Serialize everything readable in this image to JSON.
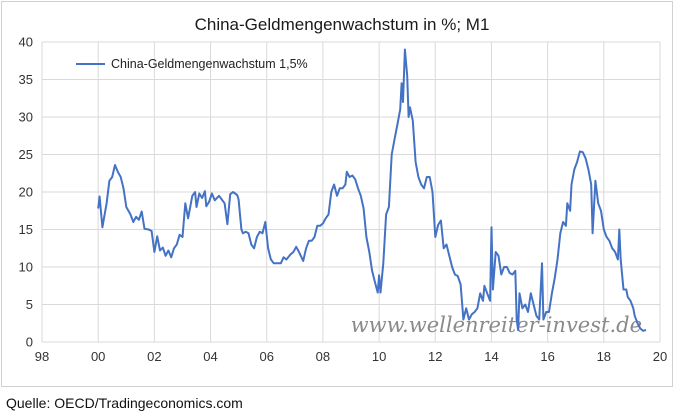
{
  "chart_data": {
    "type": "line",
    "title": "China-Geldmengenwachstum in %; M1",
    "xlabel": "",
    "ylabel": "",
    "xlim": [
      1998,
      2020
    ],
    "ylim": [
      0,
      40
    ],
    "grid": true,
    "legend_position": "top-left",
    "x_ticks": [
      {
        "value": 1998,
        "label": "98"
      },
      {
        "value": 2000,
        "label": "00"
      },
      {
        "value": 2002,
        "label": "02"
      },
      {
        "value": 2004,
        "label": "04"
      },
      {
        "value": 2006,
        "label": "06"
      },
      {
        "value": 2008,
        "label": "08"
      },
      {
        "value": 2010,
        "label": "10"
      },
      {
        "value": 2012,
        "label": "12"
      },
      {
        "value": 2014,
        "label": "14"
      },
      {
        "value": 2016,
        "label": "16"
      },
      {
        "value": 2018,
        "label": "18"
      },
      {
        "value": 2020,
        "label": "20"
      }
    ],
    "y_ticks": [
      0,
      5,
      10,
      15,
      20,
      25,
      30,
      35,
      40
    ],
    "series": [
      {
        "name": "China-Geldmengenwachstum 1,5%",
        "color": "#4472C4",
        "points": [
          [
            2000.0,
            17.8
          ],
          [
            2000.05,
            19.4
          ],
          [
            2000.15,
            15.3
          ],
          [
            2000.3,
            18.5
          ],
          [
            2000.4,
            21.5
          ],
          [
            2000.5,
            22.0
          ],
          [
            2000.6,
            23.6
          ],
          [
            2000.7,
            22.7
          ],
          [
            2000.8,
            22.0
          ],
          [
            2000.9,
            20.5
          ],
          [
            2001.0,
            18.0
          ],
          [
            2001.15,
            17.0
          ],
          [
            2001.25,
            16.0
          ],
          [
            2001.35,
            16.7
          ],
          [
            2001.45,
            16.3
          ],
          [
            2001.55,
            17.4
          ],
          [
            2001.65,
            15.1
          ],
          [
            2001.8,
            15.0
          ],
          [
            2001.9,
            14.8
          ],
          [
            2002.0,
            12.0
          ],
          [
            2002.1,
            14.1
          ],
          [
            2002.2,
            12.2
          ],
          [
            2002.3,
            12.6
          ],
          [
            2002.4,
            11.5
          ],
          [
            2002.5,
            12.2
          ],
          [
            2002.6,
            11.3
          ],
          [
            2002.7,
            12.5
          ],
          [
            2002.8,
            13.0
          ],
          [
            2002.9,
            14.3
          ],
          [
            2003.0,
            14.0
          ],
          [
            2003.1,
            18.5
          ],
          [
            2003.2,
            16.5
          ],
          [
            2003.35,
            19.5
          ],
          [
            2003.45,
            20.0
          ],
          [
            2003.5,
            18.0
          ],
          [
            2003.6,
            19.8
          ],
          [
            2003.7,
            19.2
          ],
          [
            2003.8,
            20.1
          ],
          [
            2003.85,
            18.1
          ],
          [
            2003.95,
            18.7
          ],
          [
            2004.05,
            19.8
          ],
          [
            2004.15,
            18.9
          ],
          [
            2004.3,
            19.5
          ],
          [
            2004.4,
            19.0
          ],
          [
            2004.5,
            18.5
          ],
          [
            2004.6,
            15.7
          ],
          [
            2004.7,
            19.7
          ],
          [
            2004.8,
            20.0
          ],
          [
            2004.95,
            19.6
          ],
          [
            2005.0,
            19.0
          ],
          [
            2005.1,
            15.0
          ],
          [
            2005.15,
            14.5
          ],
          [
            2005.25,
            14.7
          ],
          [
            2005.35,
            14.5
          ],
          [
            2005.45,
            13.0
          ],
          [
            2005.55,
            12.5
          ],
          [
            2005.65,
            14.0
          ],
          [
            2005.75,
            14.7
          ],
          [
            2005.85,
            14.5
          ],
          [
            2005.95,
            16.0
          ],
          [
            2006.05,
            12.5
          ],
          [
            2006.15,
            11.0
          ],
          [
            2006.25,
            10.5
          ],
          [
            2006.5,
            10.5
          ],
          [
            2006.6,
            11.3
          ],
          [
            2006.7,
            11.0
          ],
          [
            2006.85,
            11.7
          ],
          [
            2006.95,
            12.0
          ],
          [
            2007.05,
            12.7
          ],
          [
            2007.15,
            12.0
          ],
          [
            2007.3,
            10.8
          ],
          [
            2007.4,
            12.5
          ],
          [
            2007.5,
            13.5
          ],
          [
            2007.6,
            13.5
          ],
          [
            2007.7,
            14.0
          ],
          [
            2007.8,
            15.5
          ],
          [
            2007.9,
            15.5
          ],
          [
            2008.0,
            15.8
          ],
          [
            2008.1,
            16.5
          ],
          [
            2008.2,
            17.0
          ],
          [
            2008.3,
            20.0
          ],
          [
            2008.4,
            21.0
          ],
          [
            2008.5,
            19.5
          ],
          [
            2008.6,
            20.5
          ],
          [
            2008.7,
            20.5
          ],
          [
            2008.8,
            21.0
          ],
          [
            2008.85,
            22.7
          ],
          [
            2008.95,
            22.0
          ],
          [
            2009.05,
            22.2
          ],
          [
            2009.15,
            21.7
          ],
          [
            2009.25,
            20.5
          ],
          [
            2009.35,
            19.5
          ],
          [
            2009.45,
            17.8
          ],
          [
            2009.55,
            14.0
          ],
          [
            2009.65,
            12.0
          ],
          [
            2009.75,
            9.5
          ],
          [
            2009.85,
            8.0
          ],
          [
            2009.95,
            6.6
          ],
          [
            2010.0,
            8.9
          ],
          [
            2010.05,
            6.6
          ],
          [
            2010.15,
            10.5
          ],
          [
            2010.25,
            17.0
          ],
          [
            2010.35,
            18.0
          ],
          [
            2010.45,
            25.0
          ],
          [
            2010.55,
            27.0
          ],
          [
            2010.65,
            29.0
          ],
          [
            2010.75,
            31.0
          ],
          [
            2010.8,
            34.5
          ],
          [
            2010.85,
            32.0
          ],
          [
            2010.92,
            39.0
          ],
          [
            2011.0,
            35.5
          ],
          [
            2011.05,
            30.0
          ],
          [
            2011.1,
            31.3
          ],
          [
            2011.2,
            29.5
          ],
          [
            2011.3,
            24.0
          ],
          [
            2011.4,
            22.0
          ],
          [
            2011.5,
            21.0
          ],
          [
            2011.6,
            20.5
          ],
          [
            2011.7,
            22.0
          ],
          [
            2011.8,
            22.0
          ],
          [
            2011.9,
            20.0
          ],
          [
            2012.0,
            14.0
          ],
          [
            2012.1,
            15.6
          ],
          [
            2012.2,
            16.2
          ],
          [
            2012.3,
            12.5
          ],
          [
            2012.4,
            13.0
          ],
          [
            2012.5,
            11.5
          ],
          [
            2012.6,
            10.0
          ],
          [
            2012.7,
            9.0
          ],
          [
            2012.8,
            8.8
          ],
          [
            2012.9,
            7.7
          ],
          [
            2013.0,
            3.0
          ],
          [
            2013.1,
            4.5
          ],
          [
            2013.2,
            3.0
          ],
          [
            2013.3,
            3.7
          ],
          [
            2013.4,
            4.0
          ],
          [
            2013.5,
            4.5
          ],
          [
            2013.6,
            6.5
          ],
          [
            2013.7,
            5.5
          ],
          [
            2013.75,
            7.5
          ],
          [
            2013.85,
            6.5
          ],
          [
            2013.95,
            5.5
          ],
          [
            2014.0,
            15.3
          ],
          [
            2014.05,
            7.0
          ],
          [
            2014.15,
            12.0
          ],
          [
            2014.25,
            11.5
          ],
          [
            2014.35,
            9.0
          ],
          [
            2014.45,
            10.0
          ],
          [
            2014.55,
            10.0
          ],
          [
            2014.65,
            9.2
          ],
          [
            2014.75,
            9.0
          ],
          [
            2014.85,
            9.5
          ],
          [
            2014.9,
            3.0
          ],
          [
            2014.95,
            1.6
          ],
          [
            2015.0,
            6.5
          ],
          [
            2015.1,
            4.5
          ],
          [
            2015.2,
            5.0
          ],
          [
            2015.3,
            4.0
          ],
          [
            2015.4,
            6.5
          ],
          [
            2015.5,
            5.0
          ],
          [
            2015.6,
            3.5
          ],
          [
            2015.7,
            3.0
          ],
          [
            2015.8,
            10.5
          ],
          [
            2015.85,
            3.0
          ],
          [
            2015.95,
            4.0
          ],
          [
            2016.05,
            4.0
          ],
          [
            2016.15,
            6.5
          ],
          [
            2016.25,
            8.5
          ],
          [
            2016.35,
            11.0
          ],
          [
            2016.45,
            14.5
          ],
          [
            2016.55,
            16.0
          ],
          [
            2016.65,
            15.5
          ],
          [
            2016.7,
            18.5
          ],
          [
            2016.8,
            17.5
          ],
          [
            2016.85,
            21.0
          ],
          [
            2016.95,
            23.0
          ],
          [
            2017.05,
            24.0
          ],
          [
            2017.15,
            25.4
          ],
          [
            2017.25,
            25.3
          ],
          [
            2017.35,
            24.5
          ],
          [
            2017.45,
            23.0
          ],
          [
            2017.55,
            21.0
          ],
          [
            2017.6,
            14.5
          ],
          [
            2017.7,
            21.5
          ],
          [
            2017.8,
            18.5
          ],
          [
            2017.9,
            17.5
          ],
          [
            2018.0,
            15.0
          ],
          [
            2018.1,
            14.0
          ],
          [
            2018.2,
            13.5
          ],
          [
            2018.3,
            12.5
          ],
          [
            2018.4,
            12.0
          ],
          [
            2018.5,
            11.0
          ],
          [
            2018.55,
            15.0
          ],
          [
            2018.6,
            11.0
          ],
          [
            2018.7,
            7.0
          ],
          [
            2018.8,
            7.0
          ],
          [
            2018.85,
            6.0
          ],
          [
            2018.95,
            5.5
          ],
          [
            2019.0,
            5.0
          ],
          [
            2019.05,
            4.5
          ],
          [
            2019.1,
            3.5
          ],
          [
            2019.2,
            2.5
          ],
          [
            2019.3,
            1.8
          ],
          [
            2019.4,
            1.5
          ],
          [
            2019.5,
            1.6
          ]
        ]
      }
    ]
  },
  "watermark": "www.wellenreiter-invest.de",
  "source": "Quelle: OECD/Tradingeconomics.com"
}
